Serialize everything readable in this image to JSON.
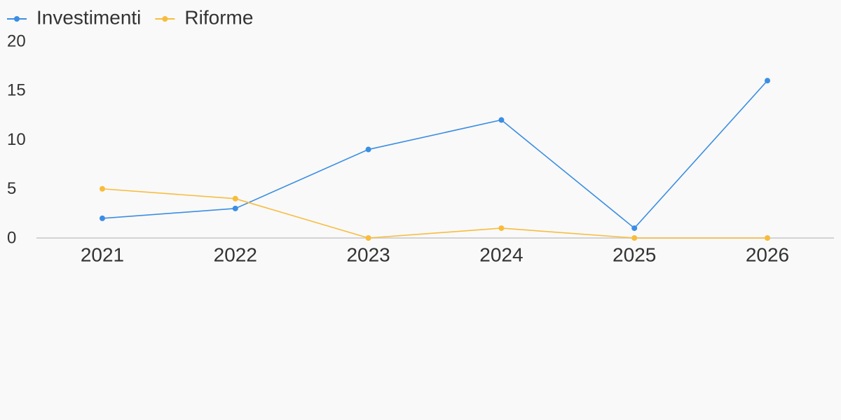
{
  "chart_data": {
    "type": "line",
    "categories": [
      "2021",
      "2022",
      "2023",
      "2024",
      "2025",
      "2026"
    ],
    "series": [
      {
        "name": "Investimenti",
        "color": "#3b8ee3",
        "values": [
          2,
          3,
          9,
          12,
          1,
          16
        ]
      },
      {
        "name": "Riforme",
        "color": "#f8bc3c",
        "values": [
          5,
          4,
          0,
          1,
          0,
          0
        ]
      }
    ],
    "ylim": [
      0,
      20
    ],
    "yticks": [
      0,
      5,
      10,
      15,
      20
    ],
    "grid": false,
    "legend": "top-left"
  }
}
